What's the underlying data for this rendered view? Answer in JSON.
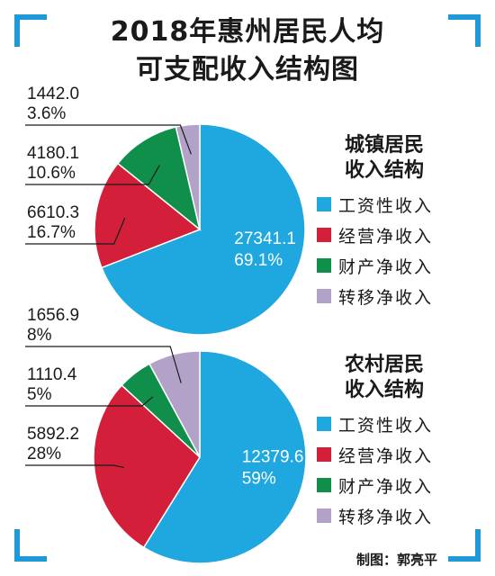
{
  "title": {
    "line1": "2018年惠州居民人均",
    "line2": "可支配收入结构图"
  },
  "colors": {
    "salary": "#1fa7df",
    "business": "#d41f3a",
    "property": "#0f8f4a",
    "transfer": "#b3a2c8",
    "corner": "#1f9ad6"
  },
  "chart_data": [
    {
      "type": "pie",
      "title": "城镇居民\n收入结构",
      "title_lines": [
        "城镇居民",
        "收入结构"
      ],
      "categories": [
        "工资性收入",
        "经营净收入",
        "财产净收入",
        "转移净收入"
      ],
      "values": [
        27341.1,
        6610.3,
        4180.1,
        1442.0
      ],
      "percent_labels": [
        "69.1%",
        "16.7%",
        "10.6%",
        "3.6%"
      ],
      "value_labels": [
        "27341.1",
        "6610.3",
        "4180.1",
        "1442.0"
      ],
      "legend_position": "right"
    },
    {
      "type": "pie",
      "title": "农村居民\n收入结构",
      "title_lines": [
        "农村居民",
        "收入结构"
      ],
      "categories": [
        "工资性收入",
        "经营净收入",
        "财产净收入",
        "转移净收入"
      ],
      "values": [
        12379.6,
        5892.2,
        1110.4,
        1656.9
      ],
      "percent_labels": [
        "59%",
        "28%",
        "5%",
        "8%"
      ],
      "value_labels": [
        "12379.6",
        "5892.2",
        "1110.4",
        "1656.9"
      ],
      "legend_position": "right"
    }
  ],
  "credit": "制图：郭亮平"
}
